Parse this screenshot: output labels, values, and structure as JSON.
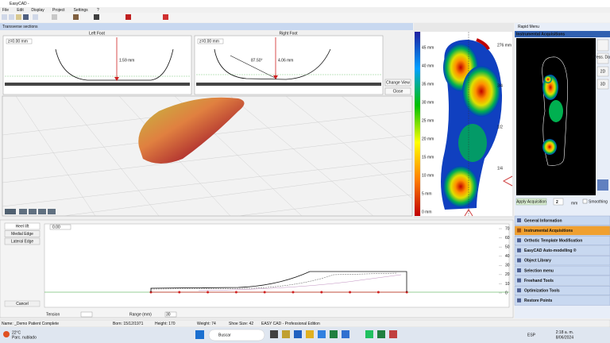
{
  "window": {
    "title": "EasyCAD -"
  },
  "menu": [
    "File",
    "Edit",
    "Display",
    "Project",
    "Settings",
    "?"
  ],
  "transverse": {
    "title": "Transverse sections",
    "left": {
      "title": "Left Foot",
      "z": "z=0.00 mm",
      "depth": "1.59 mm"
    },
    "right": {
      "title": "Right Foot",
      "z": "z=0.00 mm",
      "angle": "87.50°",
      "depth": "4.06 mm"
    },
    "buttons": [
      "Change View",
      "Close"
    ]
  },
  "pressure_scale": {
    "left": [
      "45 mm",
      "40 mm",
      "35 mm",
      "30 mm",
      "25 mm",
      "20 mm",
      "15 mm",
      "10 mm",
      "5 mm",
      "0 mm"
    ],
    "right": [
      "276 mm",
      "3/4",
      "1/2",
      "1/4"
    ]
  },
  "rapid_menu": {
    "title": "Rapid Menu",
    "section": "Instrumental Acquisitions",
    "side_buttons": [
      "Press. Data",
      "2D",
      "3D"
    ],
    "apply": "Apply Acquisition",
    "step": "2",
    "unit": "mm",
    "smoothing": "Smoothing",
    "items": [
      "General Information",
      "Instrumental Acquisitions",
      "Orthotic Template Modification",
      "EasyCAD Auto-modelling ®",
      "Object Library",
      "Selection menu",
      "Freehand Tools",
      "Optimization Tools",
      "Restore Points"
    ]
  },
  "profile": {
    "buttons": [
      "Heel lift",
      "Medial Edge",
      "Lateral Edge"
    ],
    "cancel": "Cancel",
    "offset": "0.00",
    "tension": "Tension",
    "range_label": "Range (mm)",
    "range": "30",
    "ylim": [
      0,
      70
    ],
    "yticks": [
      0,
      10,
      20,
      30,
      40,
      50,
      60,
      70
    ]
  },
  "status": [
    "Name: _Demo Patient Complete",
    "Born: 15/12/1971",
    "Height: 170",
    "Weight: 74",
    "Shoe Size: 42",
    "EASY CAD - Professional Edition"
  ],
  "taskbar": {
    "temp": "22°C",
    "weather": "Parc. nublado",
    "search": "Buscar",
    "lang": "ESP",
    "time": "2:18 a. m.",
    "date": "8/06/2024"
  }
}
